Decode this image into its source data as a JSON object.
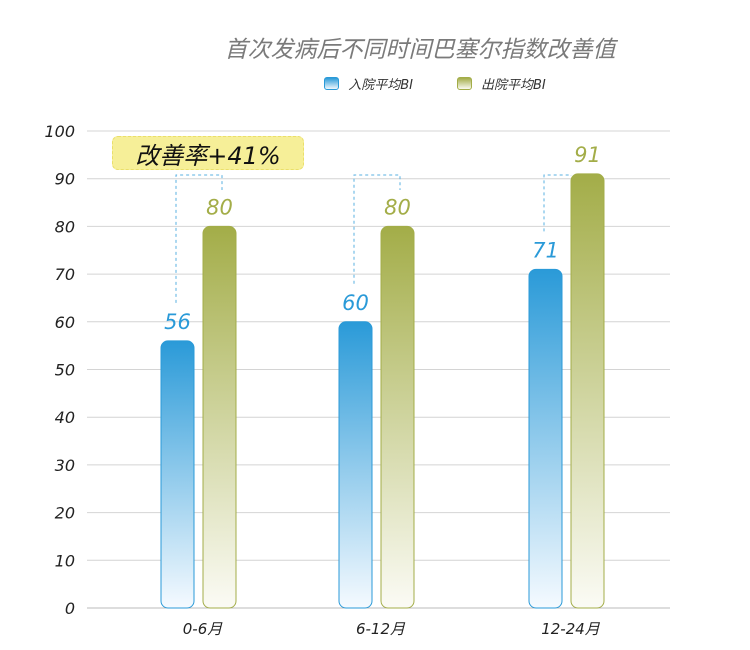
{
  "chart_data": {
    "type": "bar",
    "title": "首次发病后不同时间巴塞尔指数改善值",
    "categories": [
      "0-6月",
      "6-12月",
      "12-24月"
    ],
    "series": [
      {
        "name": "入院平均BI",
        "values": [
          56,
          60,
          71
        ],
        "color": "#2a9ad8"
      },
      {
        "name": "出院平均BI",
        "values": [
          80,
          80,
          91
        ],
        "color": "#a3ad48"
      }
    ],
    "ylim": [
      0,
      100
    ],
    "yticks": [
      0,
      10,
      20,
      30,
      40,
      50,
      60,
      70,
      80,
      90,
      100
    ],
    "grid": true,
    "legend": "top",
    "annotation": "改善率+41%"
  }
}
